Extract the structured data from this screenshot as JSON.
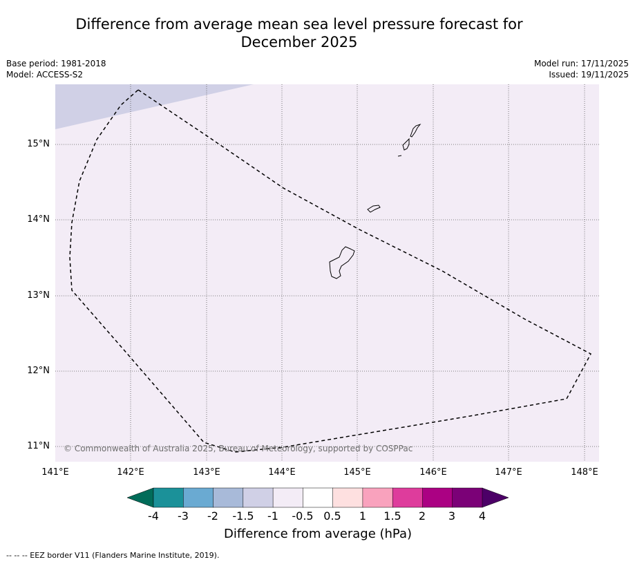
{
  "title_line1": "Difference from average mean sea level pressure forecast for",
  "title_line2": "December 2025",
  "base_period": "Base period: 1981-2018",
  "model": "Model: ACCESS-S2",
  "model_run": "Model run: 17/11/2025",
  "issued": "Issued: 19/11/2025",
  "copyright": "© Commonwealth of Australia 2025, Bureau of Meteorology, supported by COSPPac",
  "lat_labels": [
    "15°N",
    "14°N",
    "13°N",
    "12°N",
    "11°N"
  ],
  "lon_labels": [
    "141°E",
    "142°E",
    "143°E",
    "144°E",
    "145°E",
    "146°E",
    "147°E",
    "148°E"
  ],
  "colorbar": {
    "label": "Difference from average (hPa)",
    "ticks": [
      "-4",
      "-3",
      "-2",
      "-1.5",
      "-1",
      "-0.5",
      "0.5",
      "1",
      "1.5",
      "2",
      "3",
      "4"
    ],
    "colors": [
      "#1b9199",
      "#6aaad2",
      "#a8bad9",
      "#d0d0e6",
      "#f3ecf6",
      "#ffffff",
      "#fee0e0",
      "#f9a2bd",
      "#de3c9c",
      "#ab0183",
      "#7b0177"
    ],
    "under_color": "#016c59",
    "over_color": "#4c0067"
  },
  "map_colors": {
    "background": "#f3ecf6",
    "low_area": "#d0d0e6"
  },
  "footnote": "--  --  -- EEZ border V11 (Flanders Marine Institute, 2019)."
}
